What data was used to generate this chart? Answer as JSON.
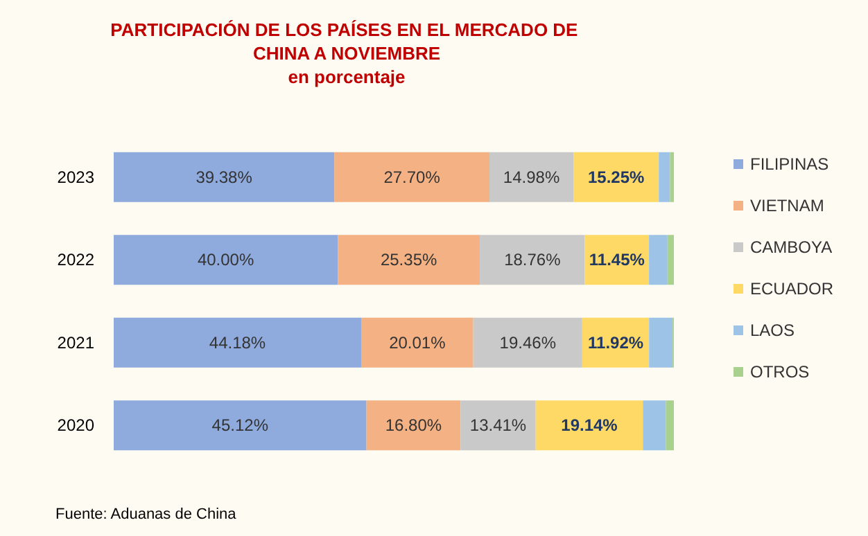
{
  "chart_data": {
    "type": "bar",
    "orientation": "horizontal",
    "stacked": true,
    "title": "PARTICIPACIÓN DE LOS PAÍSES EN EL MERCADO DE CHINA A NOVIEMBRE",
    "subtitle": "en porcentaje",
    "categories": [
      "2023",
      "2022",
      "2021",
      "2020"
    ],
    "xlim": [
      0,
      100
    ],
    "tick_labels": "y",
    "grid": false,
    "legend": "right",
    "annotations": [
      "Fuente: Aduanas de China"
    ],
    "series": [
      {
        "name": "FILIPINAS",
        "color": "#8faadc",
        "values": [
          39.38,
          40.0,
          44.18,
          45.12
        ],
        "value_labels": [
          "39.38%",
          "40.00%",
          "44.18%",
          "45.12%"
        ]
      },
      {
        "name": "VIETNAM",
        "color": "#f4b183",
        "values": [
          27.7,
          25.35,
          20.01,
          16.8
        ],
        "value_labels": [
          "27.70%",
          "25.35%",
          "20.01%",
          "16.80%"
        ]
      },
      {
        "name": "CAMBOYA",
        "color": "#c9c9c9",
        "values": [
          14.98,
          18.76,
          19.46,
          13.41
        ],
        "value_labels": [
          "14.98%",
          "18.76%",
          "19.46%",
          "13.41%"
        ]
      },
      {
        "name": "ECUADOR",
        "color": "#ffd966",
        "values": [
          15.25,
          11.45,
          11.92,
          19.14
        ],
        "value_labels": [
          "15.25%",
          "11.45%",
          "11.92%",
          "19.14%"
        ]
      },
      {
        "name": "LAOS",
        "color": "#9dc3e6",
        "values": [
          2.0,
          3.3,
          4.2,
          4.1
        ]
      },
      {
        "name": "OTROS",
        "color": "#a9d18e",
        "values": [
          0.69,
          1.14,
          0.23,
          1.43
        ]
      }
    ]
  }
}
